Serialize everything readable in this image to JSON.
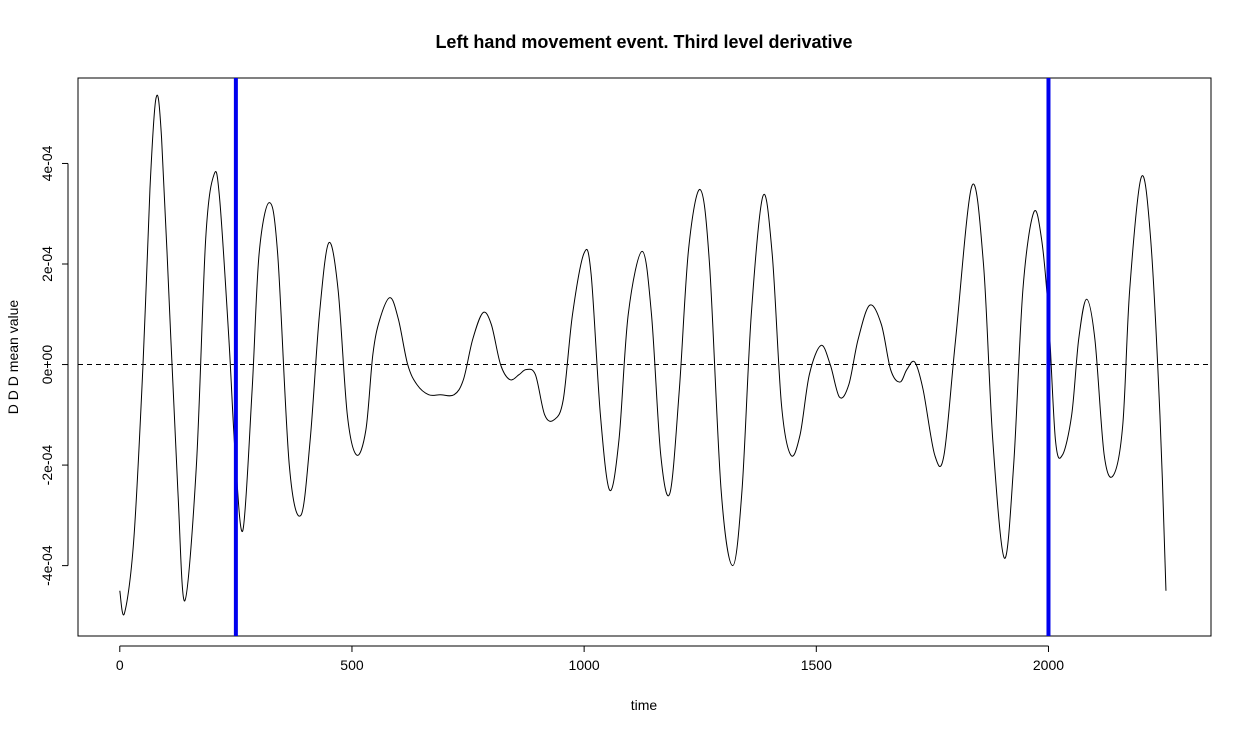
{
  "chart_data": {
    "type": "line",
    "title": "Left hand movement event. Third level derivative",
    "xlabel": "time",
    "ylabel": "D D D mean value",
    "xlim": [
      -90,
      2350
    ],
    "ylim": [
      -0.00054,
      0.00057
    ],
    "x_ticks": [
      0,
      500,
      1000,
      1500,
      2000
    ],
    "x_tick_labels": [
      "0",
      "500",
      "1000",
      "1500",
      "2000"
    ],
    "y_ticks": [
      -0.0004,
      -0.0002,
      0,
      0.0002,
      0.0004
    ],
    "y_tick_labels": [
      "-4e-04",
      "-2e-04",
      "0e+00",
      "2e-04",
      "4e-04"
    ],
    "reference_line": {
      "y": 0,
      "style": "dashed",
      "color": "#000000"
    },
    "vertical_lines": [
      {
        "x": 250,
        "color": "#0000ee"
      },
      {
        "x": 2000,
        "color": "#0000ee"
      }
    ],
    "series": [
      {
        "color": "#000000",
        "points": [
          [
            0,
            -0.00045
          ],
          [
            10,
            -0.000495
          ],
          [
            30,
            -0.00035
          ],
          [
            50,
            0.0
          ],
          [
            65,
            0.00035
          ],
          [
            78,
            0.00053
          ],
          [
            90,
            0.00045
          ],
          [
            110,
            5e-05
          ],
          [
            125,
            -0.00025
          ],
          [
            140,
            -0.00047
          ],
          [
            165,
            -0.0002
          ],
          [
            185,
            0.00025
          ],
          [
            203,
            0.000378
          ],
          [
            215,
            0.00033
          ],
          [
            235,
            5e-05
          ],
          [
            248,
            -0.00017
          ],
          [
            265,
            -0.00033
          ],
          [
            285,
            -5e-05
          ],
          [
            300,
            0.00022
          ],
          [
            322,
            0.000322
          ],
          [
            340,
            0.00022
          ],
          [
            365,
            -0.0002
          ],
          [
            390,
            -0.0003
          ],
          [
            410,
            -0.00015
          ],
          [
            430,
            0.0001
          ],
          [
            450,
            0.000242
          ],
          [
            470,
            0.00015
          ],
          [
            490,
            -0.0001
          ],
          [
            510,
            -0.00018
          ],
          [
            530,
            -0.00013
          ],
          [
            545,
            2e-05
          ],
          [
            560,
            9e-05
          ],
          [
            582,
            0.000133
          ],
          [
            600,
            9e-05
          ],
          [
            620,
            0.0
          ],
          [
            640,
            -4e-05
          ],
          [
            665,
            -6e-05
          ],
          [
            690,
            -6e-05
          ],
          [
            720,
            -6e-05
          ],
          [
            740,
            -3e-05
          ],
          [
            760,
            5e-05
          ],
          [
            782,
            0.000103
          ],
          [
            800,
            8e-05
          ],
          [
            820,
            0.0
          ],
          [
            840,
            -3e-05
          ],
          [
            860,
            -2e-05
          ],
          [
            875,
            -1e-05
          ],
          [
            895,
            -2e-05
          ],
          [
            915,
            -0.0001
          ],
          [
            935,
            -0.00011
          ],
          [
            955,
            -7e-05
          ],
          [
            975,
            0.0001
          ],
          [
            1000,
            0.000222
          ],
          [
            1015,
            0.00018
          ],
          [
            1035,
            -0.0001
          ],
          [
            1055,
            -0.00025
          ],
          [
            1075,
            -0.00015
          ],
          [
            1095,
            0.0001
          ],
          [
            1125,
            0.000225
          ],
          [
            1145,
            0.0001
          ],
          [
            1165,
            -0.00018
          ],
          [
            1185,
            -0.000255
          ],
          [
            1205,
            -5e-05
          ],
          [
            1225,
            0.00023
          ],
          [
            1250,
            0.000348
          ],
          [
            1270,
            0.0002
          ],
          [
            1295,
            -0.00025
          ],
          [
            1320,
            -0.0004
          ],
          [
            1340,
            -0.00025
          ],
          [
            1360,
            0.0001
          ],
          [
            1385,
            0.000335
          ],
          [
            1405,
            0.00022
          ],
          [
            1425,
            -8e-05
          ],
          [
            1445,
            -0.00018
          ],
          [
            1465,
            -0.00014
          ],
          [
            1485,
            -2e-05
          ],
          [
            1510,
            3.8e-05
          ],
          [
            1530,
            0.0
          ],
          [
            1550,
            -6.5e-05
          ],
          [
            1570,
            -4e-05
          ],
          [
            1590,
            5e-05
          ],
          [
            1615,
            0.000118
          ],
          [
            1640,
            8e-05
          ],
          [
            1660,
            -1e-05
          ],
          [
            1680,
            -3.5e-05
          ],
          [
            1695,
            -1e-05
          ],
          [
            1712,
            5e-06
          ],
          [
            1730,
            -5e-05
          ],
          [
            1755,
            -0.00018
          ],
          [
            1775,
            -0.00018
          ],
          [
            1800,
            5e-05
          ],
          [
            1835,
            0.000355
          ],
          [
            1860,
            0.0002
          ],
          [
            1880,
            -0.00015
          ],
          [
            1905,
            -0.000385
          ],
          [
            1925,
            -0.0002
          ],
          [
            1945,
            0.00015
          ],
          [
            1968,
            0.000302
          ],
          [
            1985,
            0.00025
          ],
          [
            2000,
            0.0001
          ],
          [
            2015,
            -0.00015
          ],
          [
            2030,
            -0.00018
          ],
          [
            2050,
            -0.0001
          ],
          [
            2065,
            5e-05
          ],
          [
            2082,
            0.00013
          ],
          [
            2100,
            5e-05
          ],
          [
            2120,
            -0.00018
          ],
          [
            2140,
            -0.00022
          ],
          [
            2160,
            -0.00012
          ],
          [
            2175,
            0.00015
          ],
          [
            2200,
            0.000373
          ],
          [
            2220,
            0.00025
          ],
          [
            2240,
            -0.0001
          ],
          [
            2253,
            -0.00045
          ]
        ]
      }
    ]
  }
}
